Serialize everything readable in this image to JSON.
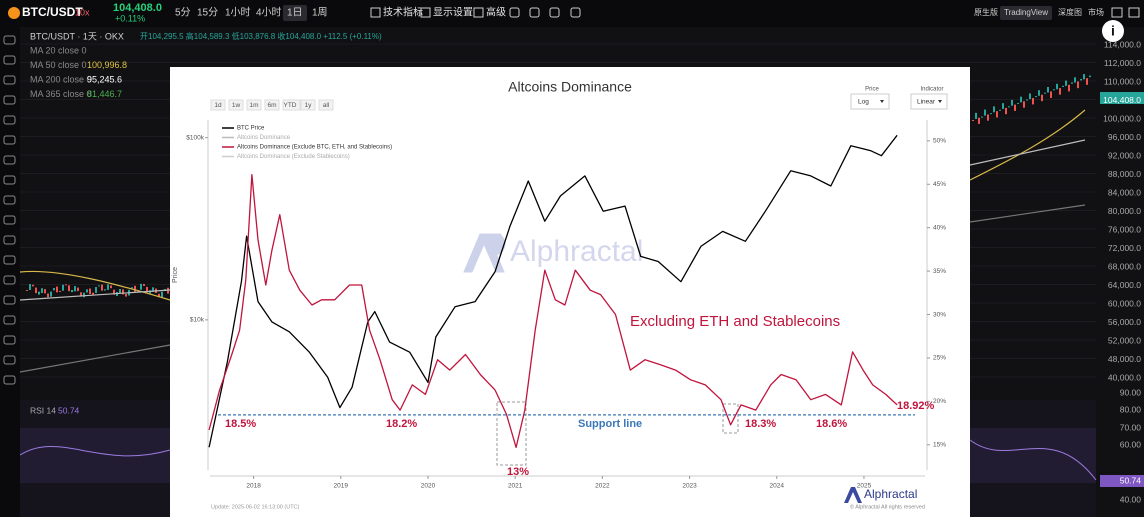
{
  "toolbar": {
    "symbol": "BTC/USDT",
    "leverage": "10x",
    "price": "104,408.0",
    "change": "+0.11%",
    "intervals": [
      "5分",
      "15分",
      "1小时",
      "4小时",
      "1日",
      "1周"
    ],
    "tools": [
      "技术指标",
      "显示设置",
      "高级"
    ],
    "views": [
      "原生版",
      "TradingView",
      "深度图",
      "市场"
    ]
  },
  "legend": {
    "header": "BTC/USDT · 1天 · OKX",
    "ohlc": "开104,295.5 高104,589.3 低103,876.8 收104,408.0 +112.5 (+0.11%)",
    "ma": [
      {
        "name": "MA 20 close 0"
      },
      {
        "name": "MA 50 close 0",
        "value": "100,996.8"
      },
      {
        "name": "MA 200 close 0",
        "value": "95,245.6"
      },
      {
        "name": "MA 365 close 0",
        "value": "81,446.7"
      }
    ]
  },
  "price_axis": [
    "114,000.0",
    "112,000.0",
    "110,000.0",
    "104,408.0",
    "100,000.0",
    "96,000.0",
    "92,000.0",
    "88,000.0",
    "84,000.0",
    "80,000.0",
    "76,000.0",
    "72,000.0",
    "68,000.0",
    "64,000.0",
    "60,000.0",
    "56,000.0",
    "52,000.0",
    "48,000.0",
    "40,000.0"
  ],
  "rsi": {
    "name": "RSI 14",
    "value": "50.74",
    "axis": [
      "90.00",
      "80.00",
      "70.00",
      "60.00",
      "50.74",
      "40.00"
    ]
  },
  "chart_data": {
    "type": "line",
    "title": "Altcoins Dominance",
    "range_buttons": [
      "1d",
      "1w",
      "1m",
      "6m",
      "YTD",
      "1y",
      "all"
    ],
    "controls": {
      "price_label": "Price",
      "price_scale": "Log",
      "indicator_label": "Indicator",
      "indicator_scale": "Linear"
    },
    "y_label": "Price",
    "log_scale": true,
    "xlim": [
      2017.5,
      2025.7
    ],
    "xticks": [
      2018,
      2019,
      2020,
      2021,
      2022,
      2023,
      2024,
      2025
    ],
    "ylim": [
      1500,
      125000
    ],
    "yticks": [
      {
        "value": 10000,
        "label": "$10k"
      },
      {
        "value": 100000,
        "label": "$100k"
      }
    ],
    "y2lim": [
      12.1,
      52.4
    ],
    "y2ticks": [
      {
        "value": 15,
        "label": "15%"
      },
      {
        "value": 20,
        "label": "20%"
      },
      {
        "value": 25,
        "label": "25%"
      },
      {
        "value": 30,
        "label": "30%"
      },
      {
        "value": 35,
        "label": "35%"
      },
      {
        "value": 40,
        "label": "40%"
      },
      {
        "value": 45,
        "label": "45%"
      },
      {
        "value": 50,
        "label": "50%"
      }
    ],
    "series": [
      {
        "name": "BTC Price",
        "color": "#000000",
        "x": [
          2017.49,
          2017.7,
          2017.86,
          2017.92,
          2018.05,
          2018.21,
          2018.41,
          2018.64,
          2018.85,
          2018.99,
          2019.13,
          2019.31,
          2019.39,
          2019.56,
          2019.79,
          2020.0,
          2020.09,
          2020.31,
          2020.54,
          2020.77,
          2020.94,
          2021.15,
          2021.34,
          2021.52,
          2021.8,
          2022.01,
          2022.26,
          2022.44,
          2022.64,
          2022.9,
          2023.13,
          2023.38,
          2023.64,
          2023.87,
          2024.16,
          2024.39,
          2024.62,
          2024.85,
          2025.08,
          2025.2,
          2025.38
        ],
        "values": [
          2000,
          5900,
          16200,
          28800,
          12600,
          9750,
          8600,
          6650,
          4840,
          3300,
          4270,
          9750,
          11100,
          7550,
          6650,
          4540,
          8050,
          11800,
          12600,
          18400,
          32700,
          57800,
          34800,
          47900,
          61700,
          39500,
          42100,
          22300,
          20900,
          16200,
          25300,
          30600,
          27000,
          39500,
          65800,
          61700,
          54300,
          90300,
          84700,
          79600,
          103000
        ]
      },
      {
        "name": "Altcoins Dominance",
        "color": "#bbbbbb",
        "visible": false
      },
      {
        "name": "Altcoins Dominance (Exclude BTC, ETH, and Stablecoins)",
        "color": "#c0143c",
        "axis": "y2",
        "x": [
          2017.49,
          2017.61,
          2017.75,
          2017.84,
          2017.91,
          2017.98,
          2018.05,
          2018.14,
          2018.21,
          2018.3,
          2018.41,
          2018.53,
          2018.67,
          2018.78,
          2018.93,
          2019.1,
          2019.24,
          2019.33,
          2019.45,
          2019.59,
          2019.68,
          2019.82,
          2019.97,
          2020.11,
          2020.25,
          2020.43,
          2020.6,
          2020.77,
          2020.9,
          2021.01,
          2021.11,
          2021.23,
          2021.34,
          2021.46,
          2021.57,
          2021.69,
          2021.86,
          2021.98,
          2022.15,
          2022.32,
          2022.49,
          2022.67,
          2022.84,
          2023.01,
          2023.18,
          2023.36,
          2023.47,
          2023.59,
          2023.76,
          2023.93,
          2024.05,
          2024.22,
          2024.39,
          2024.56,
          2024.74,
          2024.87,
          2024.99,
          2025.1,
          2025.25,
          2025.38
        ],
        "values": [
          16.7,
          21.3,
          25.4,
          28.2,
          34.0,
          46.1,
          38.6,
          33.4,
          37.4,
          41.5,
          35.1,
          32.8,
          31.1,
          31.7,
          31.7,
          33.4,
          33.4,
          28.2,
          24.8,
          20.2,
          19.0,
          21.9,
          20.8,
          24.8,
          23.6,
          25.4,
          23.1,
          21.3,
          18.5,
          14.7,
          19.0,
          28.2,
          35.1,
          31.7,
          31.1,
          35.1,
          32.8,
          32.3,
          30.0,
          23.6,
          24.8,
          24.2,
          23.6,
          22.5,
          21.9,
          20.2,
          17.3,
          19.6,
          19.0,
          21.9,
          23.1,
          22.5,
          20.2,
          20.8,
          19.6,
          25.7,
          23.6,
          21.9,
          20.8,
          19.6
        ]
      },
      {
        "name": "Altcoins Dominance (Exclude Stablecoins)",
        "color": "#cccccc",
        "visible": false
      }
    ],
    "support_line": {
      "label": "Support line",
      "value": 18.45,
      "color": "#3a78b8"
    },
    "annotations": [
      "Excluding ETH and Stablecoins",
      "18.5%",
      "18.2%",
      "13%",
      "18.3%",
      "18.6%",
      "18.92%"
    ],
    "watermark": "Alphractal",
    "footer": {
      "brand": "Alphractal",
      "rights": "© Alphractal All rights reserved",
      "update": "Update: 2025-06-02 16:13:00 (UTC)"
    }
  }
}
